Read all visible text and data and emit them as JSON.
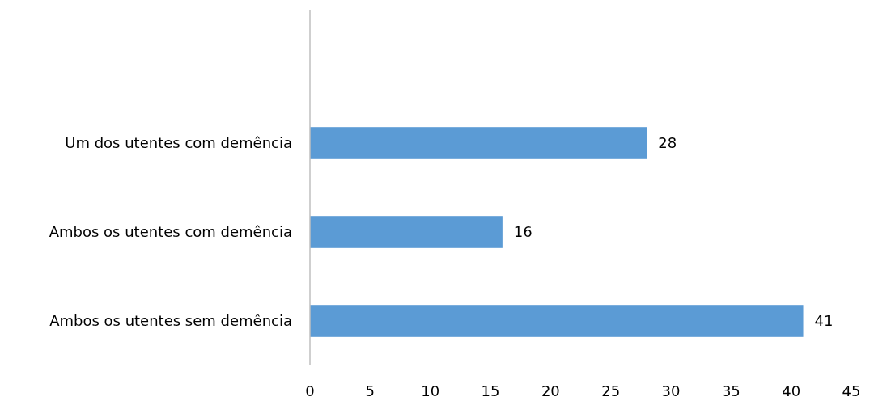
{
  "chart_data": {
    "type": "bar",
    "orientation": "horizontal",
    "categories": [
      "Um dos utentes com demência",
      "Ambos os utentes com demência",
      "Ambos os utentes sem demência"
    ],
    "values": [
      28,
      16,
      41
    ],
    "color": "#5b9bd5",
    "xlim": [
      0,
      45
    ],
    "xticks": [
      0,
      5,
      10,
      15,
      20,
      25,
      30,
      35,
      40,
      45
    ],
    "data_labels": true,
    "grid": false
  }
}
